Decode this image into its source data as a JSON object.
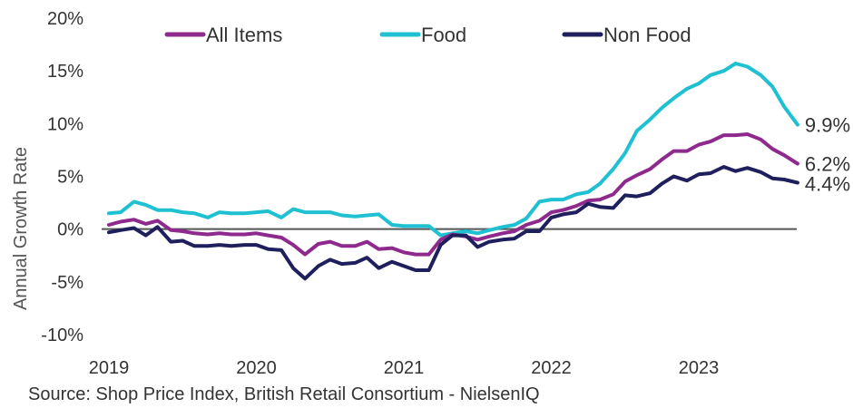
{
  "chart_data": {
    "type": "line",
    "ylabel": "Annual Growth Rate",
    "ylim": [
      -10,
      20
    ],
    "y_ticks": [
      "-10%",
      "-5%",
      "0%",
      "5%",
      "10%",
      "15%",
      "20%"
    ],
    "y_tick_values": [
      -10,
      -5,
      0,
      5,
      10,
      15,
      20
    ],
    "x_ticks": [
      "2019",
      "2020",
      "2021",
      "2022",
      "2023"
    ],
    "x_tick_values": [
      2019,
      2020,
      2021,
      2022,
      2023
    ],
    "xlim": [
      2019,
      2023.75
    ],
    "zero_line": true,
    "legend_position": "top",
    "source": "Source: Shop Price Index, British Retail Consortium - NielsenIQ",
    "series": [
      {
        "name": "All Items",
        "color": "#8e2a8e",
        "end_label": "6.2%",
        "x": [
          2019.0,
          2019.08,
          2019.17,
          2019.25,
          2019.33,
          2019.42,
          2019.5,
          2019.58,
          2019.67,
          2019.75,
          2019.83,
          2019.92,
          2020.0,
          2020.08,
          2020.17,
          2020.25,
          2020.33,
          2020.42,
          2020.5,
          2020.58,
          2020.67,
          2020.75,
          2020.83,
          2020.92,
          2021.0,
          2021.08,
          2021.17,
          2021.25,
          2021.33,
          2021.42,
          2021.5,
          2021.58,
          2021.67,
          2021.75,
          2021.83,
          2021.92,
          2022.0,
          2022.08,
          2022.17,
          2022.25,
          2022.33,
          2022.42,
          2022.5,
          2022.58,
          2022.67,
          2022.75,
          2022.83,
          2022.92,
          2023.0,
          2023.08,
          2023.17,
          2023.25,
          2023.33,
          2023.42,
          2023.5,
          2023.58,
          2023.67
        ],
        "values": [
          0.4,
          0.7,
          0.9,
          0.5,
          0.8,
          -0.1,
          -0.2,
          -0.4,
          -0.5,
          -0.4,
          -0.5,
          -0.5,
          -0.4,
          -0.6,
          -0.8,
          -1.5,
          -2.4,
          -1.4,
          -1.2,
          -1.6,
          -1.6,
          -1.2,
          -1.9,
          -1.8,
          -2.2,
          -2.4,
          -2.4,
          -1.0,
          -0.5,
          -0.7,
          -1.0,
          -0.7,
          -0.4,
          -0.2,
          0.4,
          0.8,
          1.6,
          1.8,
          2.2,
          2.7,
          2.8,
          3.3,
          4.5,
          5.1,
          5.7,
          6.6,
          7.4,
          7.4,
          8.0,
          8.3,
          8.9,
          8.9,
          9.0,
          8.5,
          7.6,
          7.0,
          6.2
        ]
      },
      {
        "name": "Food",
        "color": "#1fc0d1",
        "end_label": "9.9%",
        "x": [
          2019.0,
          2019.08,
          2019.17,
          2019.25,
          2019.33,
          2019.42,
          2019.5,
          2019.58,
          2019.67,
          2019.75,
          2019.83,
          2019.92,
          2020.0,
          2020.08,
          2020.17,
          2020.25,
          2020.33,
          2020.42,
          2020.5,
          2020.58,
          2020.67,
          2020.75,
          2020.83,
          2020.92,
          2021.0,
          2021.08,
          2021.17,
          2021.25,
          2021.33,
          2021.42,
          2021.5,
          2021.58,
          2021.67,
          2021.75,
          2021.83,
          2021.92,
          2022.0,
          2022.08,
          2022.17,
          2022.25,
          2022.33,
          2022.42,
          2022.5,
          2022.58,
          2022.67,
          2022.75,
          2022.83,
          2022.92,
          2023.0,
          2023.08,
          2023.17,
          2023.25,
          2023.33,
          2023.42,
          2023.5,
          2023.58,
          2023.67
        ],
        "values": [
          1.5,
          1.6,
          2.6,
          2.3,
          1.8,
          1.8,
          1.6,
          1.5,
          1.1,
          1.6,
          1.5,
          1.5,
          1.6,
          1.7,
          1.1,
          1.9,
          1.6,
          1.6,
          1.6,
          1.3,
          1.2,
          1.3,
          1.4,
          0.4,
          0.3,
          0.3,
          0.3,
          -0.6,
          -0.4,
          -0.2,
          -0.4,
          -0.1,
          0.2,
          0.4,
          1.0,
          2.6,
          2.8,
          2.8,
          3.3,
          3.5,
          4.3,
          5.7,
          7.2,
          9.3,
          10.4,
          11.5,
          12.4,
          13.3,
          13.8,
          14.6,
          15.0,
          15.7,
          15.4,
          14.6,
          13.5,
          11.6,
          9.9
        ]
      },
      {
        "name": "Non Food",
        "color": "#1e1f5c",
        "end_label": "4.4%",
        "x": [
          2019.0,
          2019.08,
          2019.17,
          2019.25,
          2019.33,
          2019.42,
          2019.5,
          2019.58,
          2019.67,
          2019.75,
          2019.83,
          2019.92,
          2020.0,
          2020.08,
          2020.17,
          2020.25,
          2020.33,
          2020.42,
          2020.5,
          2020.58,
          2020.67,
          2020.75,
          2020.83,
          2020.92,
          2021.0,
          2021.08,
          2021.17,
          2021.25,
          2021.33,
          2021.42,
          2021.5,
          2021.58,
          2021.67,
          2021.75,
          2021.83,
          2021.92,
          2022.0,
          2022.08,
          2022.17,
          2022.25,
          2022.33,
          2022.42,
          2022.5,
          2022.58,
          2022.67,
          2022.75,
          2022.83,
          2022.92,
          2023.0,
          2023.08,
          2023.17,
          2023.25,
          2023.33,
          2023.42,
          2023.5,
          2023.58,
          2023.67
        ],
        "values": [
          -0.3,
          -0.1,
          0.1,
          -0.6,
          0.2,
          -1.2,
          -1.1,
          -1.6,
          -1.6,
          -1.5,
          -1.6,
          -1.5,
          -1.5,
          -1.9,
          -2.0,
          -3.7,
          -4.7,
          -3.5,
          -2.9,
          -3.3,
          -3.2,
          -2.7,
          -3.7,
          -3.1,
          -3.5,
          -3.9,
          -3.9,
          -1.5,
          -0.6,
          -0.6,
          -1.7,
          -1.2,
          -1.0,
          -0.9,
          -0.2,
          -0.2,
          1.1,
          1.4,
          1.6,
          2.4,
          2.1,
          2.0,
          3.2,
          3.1,
          3.4,
          4.3,
          5.0,
          4.6,
          5.2,
          5.3,
          5.9,
          5.5,
          5.8,
          5.4,
          4.8,
          4.7,
          4.4
        ]
      }
    ]
  }
}
